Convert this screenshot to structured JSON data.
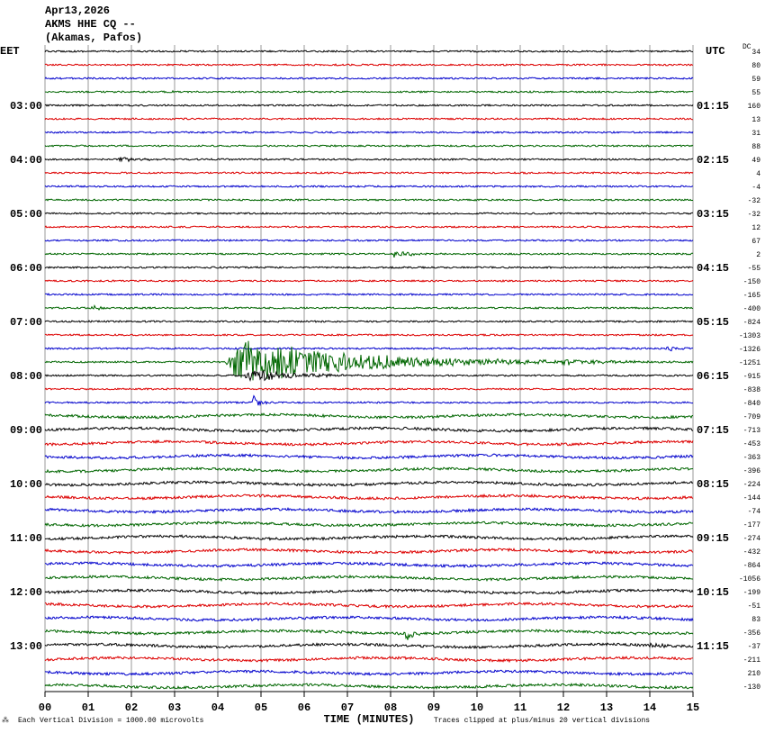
{
  "header": {
    "date": "Apr13,2026",
    "station": "AKMS HHE CQ --",
    "location": "(Akamas, Pafos)"
  },
  "left_axis": {
    "title": "EET",
    "labels": [
      "03:00",
      "04:00",
      "05:00",
      "06:00",
      "07:00",
      "08:00",
      "09:00",
      "10:00",
      "11:00",
      "12:00",
      "13:00"
    ]
  },
  "right_axis": {
    "title": "UTC",
    "labels": [
      "01:15",
      "02:15",
      "03:15",
      "04:15",
      "05:15",
      "06:15",
      "07:15",
      "08:15",
      "09:15",
      "10:15",
      "11:15"
    ]
  },
  "dc": {
    "title": "DC",
    "values": [
      34,
      80,
      59,
      55,
      160,
      13,
      31,
      88,
      49,
      4,
      -4,
      -32,
      -32,
      12,
      67,
      2,
      -55,
      -150,
      -165,
      -400,
      -824,
      -1303,
      -1326,
      -1251,
      -915,
      -838,
      -840,
      -709,
      -713,
      -453,
      -363,
      -396,
      -224,
      -144,
      -74,
      -177,
      -274,
      -432,
      -864,
      -1056,
      -199,
      -51,
      83,
      -356,
      -37,
      -211,
      210,
      -130
    ]
  },
  "x_axis": {
    "title": "TIME (MINUTES)",
    "labels": [
      "00",
      "01",
      "02",
      "03",
      "04",
      "05",
      "06",
      "07",
      "08",
      "09",
      "10",
      "11",
      "12",
      "13",
      "14",
      "15"
    ]
  },
  "footer": {
    "left": "Each Vertical Division = 1000.00 microvolts",
    "right": "Traces clipped at plus/minus 20 vertical divisions"
  }
}
